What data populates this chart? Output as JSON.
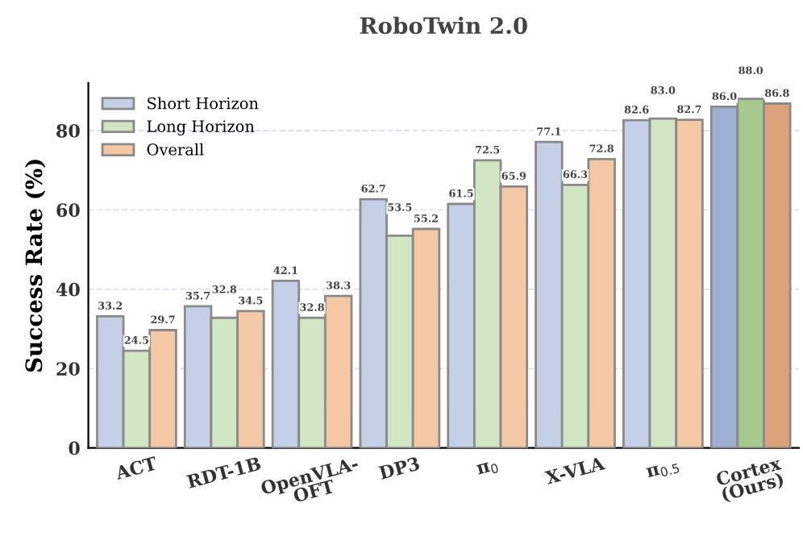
{
  "chart_data": {
    "type": "bar",
    "title": "RoboTwin 2.0",
    "ylabel": "Success Rate (%)",
    "categories": [
      "ACT",
      "RDT-1B",
      "OpenVLA-\nOFT",
      "DP3",
      "π$_{0}$",
      "X-VLA",
      "π$_{0.5}$",
      "Cortex\n(Ours)"
    ],
    "series": [
      {
        "name": "Short Horizon",
        "color": "#c5d0e6",
        "colors": [
          "#c5d0e6",
          "#c5d0e6",
          "#c5d0e6",
          "#c5d0e6",
          "#c5d0e6",
          "#c5d0e6",
          "#c5d0e6",
          "#9db0d3"
        ],
        "values": [
          33.2,
          35.7,
          42.1,
          62.7,
          61.5,
          77.1,
          82.6,
          86.0
        ],
        "value_labels": [
          "33.2",
          "35.7",
          "42.1",
          "62.7",
          "61.5",
          "77.1",
          "82.6",
          "86.0"
        ]
      },
      {
        "name": "Long Horizon",
        "color": "#d3e6c3",
        "colors": [
          "#d3e6c3",
          "#d3e6c3",
          "#d3e6c3",
          "#d3e6c3",
          "#d3e6c3",
          "#d3e6c3",
          "#d3e6c3",
          "#a8c98e"
        ],
        "values": [
          24.5,
          32.8,
          32.8,
          53.5,
          72.5,
          66.3,
          83.0,
          88.0
        ],
        "value_labels": [
          "24.5",
          "32.8",
          "32.8",
          "53.5",
          "72.5",
          "66.3",
          "83.0",
          "88.0"
        ]
      },
      {
        "name": "Overall",
        "color": "#f5c8a5",
        "colors": [
          "#f5c8a5",
          "#f5c8a5",
          "#f5c8a5",
          "#f5c8a5",
          "#f5c8a5",
          "#f5c8a5",
          "#f5c8a5",
          "#dea27b"
        ],
        "values": [
          29.7,
          34.5,
          38.3,
          55.2,
          65.9,
          72.8,
          82.7,
          86.8
        ],
        "value_labels": [
          "29.7",
          "34.5",
          "38.3",
          "55.2",
          "65.9",
          "72.8",
          "82.7",
          "86.8"
        ]
      }
    ],
    "ylim": [
      0,
      92
    ],
    "yticks": [
      0,
      20,
      40,
      60,
      80
    ],
    "grid": "y",
    "legend": "top left"
  }
}
